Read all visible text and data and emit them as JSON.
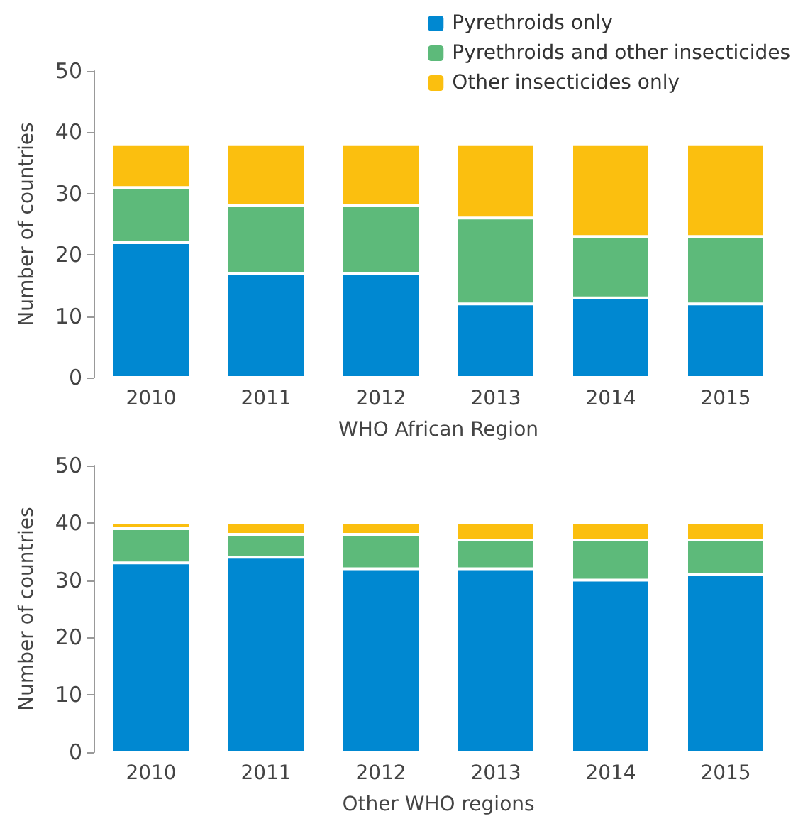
{
  "chart_data": [
    {
      "type": "bar",
      "stacked": true,
      "xlabel": "WHO African Region",
      "ylabel": "Number of countries",
      "categories": [
        "2010",
        "2011",
        "2012",
        "2013",
        "2014",
        "2015"
      ],
      "series": [
        {
          "name": "Pyrethroids only",
          "color": "#0088d1",
          "values": [
            22,
            17,
            17,
            12,
            13,
            12
          ]
        },
        {
          "name": "Pyrethroids and other insecticides",
          "color": "#5dba7a",
          "values": [
            9,
            11,
            11,
            14,
            10,
            11
          ]
        },
        {
          "name": "Other insecticides only",
          "color": "#fbbf0f",
          "values": [
            7,
            10,
            10,
            12,
            15,
            15
          ]
        }
      ],
      "ylim": [
        0,
        50
      ],
      "yticks": [
        0,
        10,
        20,
        30,
        40,
        50
      ],
      "grid": false,
      "legend": "top right"
    },
    {
      "type": "bar",
      "stacked": true,
      "xlabel": "Other WHO regions",
      "ylabel": "Number of countries",
      "categories": [
        "2010",
        "2011",
        "2012",
        "2013",
        "2014",
        "2015"
      ],
      "series": [
        {
          "color": "#0088d1",
          "values": [
            33,
            34,
            32,
            32,
            30,
            31
          ]
        },
        {
          "color": "#5dba7a",
          "values": [
            6,
            4,
            6,
            5,
            7,
            6
          ]
        },
        {
          "color": "#fbbf0f",
          "values": [
            1,
            2,
            2,
            3,
            3,
            3
          ]
        }
      ],
      "ylim": [
        0,
        50
      ],
      "yticks": [
        0,
        10,
        20,
        30,
        40,
        50
      ],
      "grid": false
    }
  ]
}
